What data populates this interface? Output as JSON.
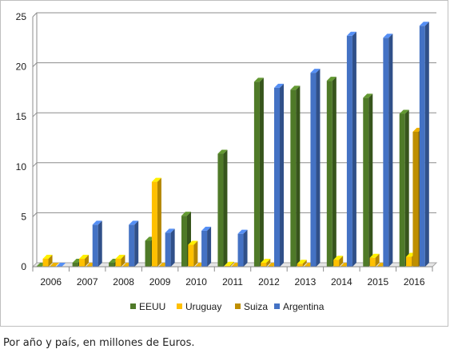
{
  "caption": "Por año y país, en millones de Euros.",
  "chart_data": {
    "type": "bar",
    "title": "",
    "xlabel": "",
    "ylabel": "",
    "ylim": [
      0,
      25
    ],
    "yticks": [
      0,
      5,
      10,
      15,
      20,
      25
    ],
    "grid": true,
    "legend_position": "bottom",
    "categories": [
      "2006",
      "2007",
      "2008",
      "2009",
      "2010",
      "2011",
      "2012",
      "2013",
      "2014",
      "2015",
      "2016"
    ],
    "series": [
      {
        "name": "EEUU",
        "color": "#4f7a28",
        "values": [
          0,
          0.4,
          0.4,
          2.6,
          5.1,
          11.3,
          18.5,
          17.7,
          18.6,
          16.9,
          15.3
        ]
      },
      {
        "name": "Uruguay",
        "color": "#ffc000",
        "values": [
          0.8,
          0.8,
          0.8,
          8.5,
          2.2,
          0.1,
          0.4,
          0.3,
          0.7,
          0.9,
          1.0
        ]
      },
      {
        "name": "Suiza",
        "color": "#bf8f00",
        "values": [
          0,
          0,
          0,
          0,
          0,
          0,
          0,
          0,
          0,
          0,
          13.5
        ]
      },
      {
        "name": "Argentina",
        "color": "#4472c4",
        "values": [
          0,
          4.2,
          4.2,
          3.4,
          3.6,
          3.3,
          17.9,
          19.4,
          23.1,
          22.9,
          24.1
        ]
      }
    ]
  }
}
